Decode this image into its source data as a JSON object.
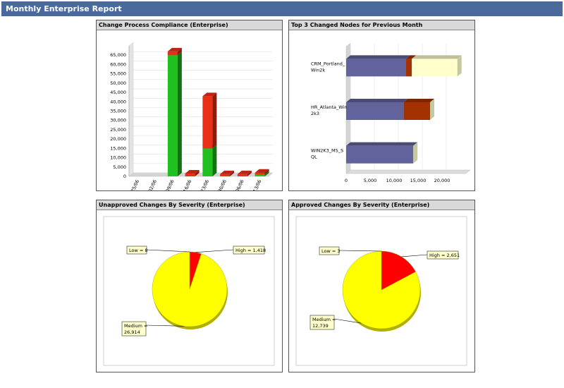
{
  "report": {
    "title": "Monthly Enterprise Report"
  },
  "panels": {
    "compliance": {
      "title": "Change Process Compliance (Enterprise)"
    },
    "top_nodes": {
      "title": "Top 3 Changed Nodes for Previous Month"
    },
    "unapproved": {
      "title": "Unapproved Changes By Severity (Enterprise)"
    },
    "approved": {
      "title": "Approved Changes By Severity (Enterprise)"
    }
  },
  "chart_data": [
    {
      "type": "bar",
      "stacked": true,
      "title": "Change Process Compliance (Enterprise)",
      "categories": [
        "09/25/06",
        "10/02/06",
        "10/09/06",
        "10/16/06",
        "10/23/06",
        "10/30/06",
        "11/06/06",
        "11/13/06"
      ],
      "series": [
        {
          "color": "#20c020",
          "values": [
            0,
            0,
            65000,
            0,
            15000,
            0,
            0,
            1000
          ]
        },
        {
          "color": "#e83018",
          "values": [
            0,
            0,
            2000,
            1500,
            28000,
            1200,
            1200,
            1000
          ]
        }
      ],
      "yticks": [
        "0",
        "5,000",
        "10,000",
        "15,000",
        "20,000",
        "25,000",
        "30,000",
        "35,000",
        "40,000",
        "45,000",
        "50,000",
        "55,000",
        "60,000",
        "65,000"
      ],
      "ylim": [
        0,
        70000
      ],
      "grid": true
    },
    {
      "type": "bar",
      "orientation": "horizontal",
      "stacked": true,
      "title": "Top 3 Changed Nodes for Previous Month",
      "categories": [
        [
          "CRM_Portland_",
          "Win2k"
        ],
        [
          "HR_Atlanta_Win",
          "2k3"
        ],
        [
          "WIN2K3_MS_S",
          "QL"
        ]
      ],
      "series": [
        {
          "color": "#62639c",
          "values": [
            12500,
            12000,
            14000
          ]
        },
        {
          "color": "#a33200",
          "values": [
            1200,
            5500,
            0
          ]
        },
        {
          "color": "#ffffcc",
          "values": [
            9500,
            0,
            0
          ]
        }
      ],
      "xticks": [
        "0",
        "5,000",
        "10,000",
        "15,000",
        "20,000"
      ],
      "xlim": [
        0,
        25000
      ],
      "grid": true
    },
    {
      "type": "pie",
      "title": "Unapproved Changes By Severity (Enterprise)",
      "slices": [
        {
          "label": "Low = 8",
          "value": 8,
          "color": "#ffff00"
        },
        {
          "label": "High = 1,418",
          "value": 1418,
          "color": "#ff0000"
        },
        {
          "label": "Medium = 26,914",
          "value": 26914,
          "color": "#ffff00"
        }
      ]
    },
    {
      "type": "pie",
      "title": "Approved Changes By Severity (Enterprise)",
      "slices": [
        {
          "label": "Low = 3",
          "value": 3,
          "color": "#ffff00"
        },
        {
          "label": "High = 2,651",
          "value": 2651,
          "color": "#ff0000"
        },
        {
          "label": "Medium = 12,739",
          "value": 12739,
          "color": "#ffff00"
        }
      ]
    }
  ]
}
